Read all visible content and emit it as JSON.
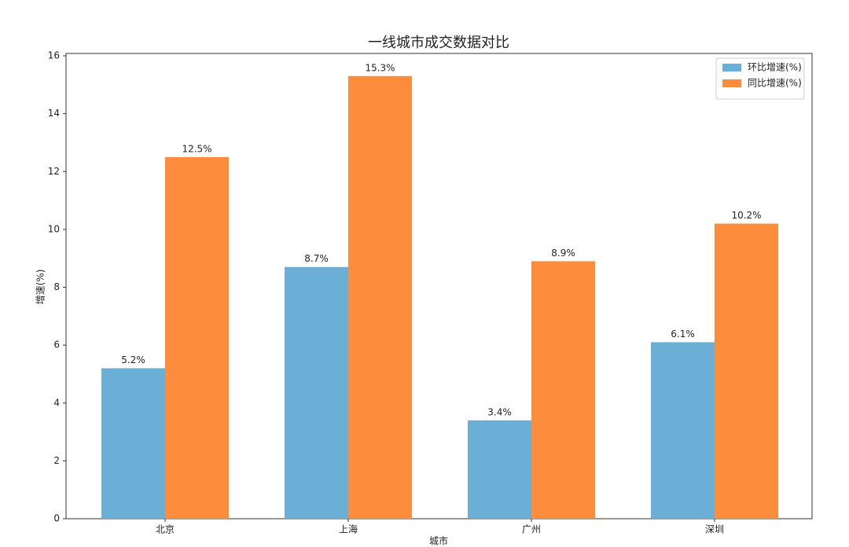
{
  "chart_data": {
    "type": "bar",
    "title": "一线城市成交数据对比",
    "x_label": "城市",
    "y_label": "增速(%)",
    "categories": [
      "北京",
      "上海",
      "广州",
      "深圳"
    ],
    "series": [
      {
        "name": "环比增速(%)",
        "color": "#6baed6",
        "values": [
          5.2,
          8.7,
          3.4,
          6.1
        ],
        "value_labels": [
          "5.2%",
          "8.7%",
          "3.4%",
          "6.1%"
        ]
      },
      {
        "name": "同比增速(%)",
        "color": "#fd8d3c",
        "values": [
          12.5,
          15.3,
          8.9,
          10.2
        ],
        "value_labels": [
          "12.5%",
          "15.3%",
          "8.9%",
          "10.2%"
        ]
      }
    ],
    "ylim": [
      0,
      16
    ],
    "yticks": [
      0,
      2,
      4,
      6,
      8,
      10,
      12,
      14,
      16
    ],
    "grid": false,
    "legend": "upper right"
  }
}
